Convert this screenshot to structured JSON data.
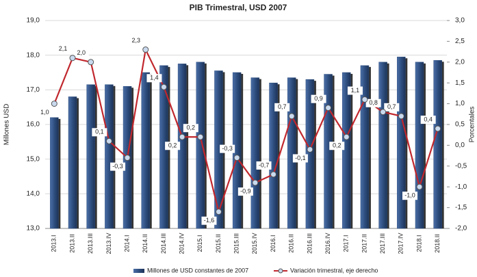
{
  "chart_data": {
    "type": "bar_line",
    "title": "PIB Trimestral, USD 2007",
    "y_label": "Millones USD",
    "y2_label": "Porcentales",
    "categories": [
      "2013.I",
      "2013.II",
      "2013.III",
      "2013.IV",
      "2014.I",
      "2014.II",
      "2014.III",
      "2014.IV",
      "2015.I",
      "2015.II",
      "2015.III",
      "2015.IV",
      "2016.I",
      "2016.II",
      "2016.III",
      "2016.IV",
      "2017.I",
      "2017.II",
      "2017.III",
      "2017.IV",
      "2018.I",
      "2018.II"
    ],
    "series": [
      {
        "name": "Millones de USD constantes de 2007",
        "color": "#2f4f80",
        "type": "bar",
        "values": [
          16.2,
          16.8,
          17.15,
          17.15,
          17.1,
          17.5,
          17.7,
          17.75,
          17.8,
          17.55,
          17.5,
          17.35,
          17.2,
          17.35,
          17.3,
          17.45,
          17.5,
          17.7,
          17.8,
          17.95,
          17.8,
          17.85
        ]
      },
      {
        "name": "Variación trimestral, eje derecho",
        "color": "#c0272d",
        "type": "line",
        "axis": "y2",
        "values": [
          1.0,
          2.1,
          2.0,
          0.1,
          -0.3,
          2.3,
          1.4,
          0.2,
          0.2,
          -1.6,
          -0.3,
          -0.9,
          -0.7,
          0.7,
          -0.1,
          0.9,
          0.2,
          1.1,
          0.8,
          0.7,
          -1.0,
          0.4
        ],
        "value_labels": [
          "1,0",
          "2,1",
          "2,0",
          "0,1",
          "-0,3",
          "2,3",
          "1,4",
          "0,2",
          "0,2",
          "-1,6",
          "-0,3",
          "-0,9",
          "-0,7",
          "0,7",
          "-0,1",
          "0,9",
          "0,2",
          "1,1",
          "0,8",
          "0,7",
          "-1,0",
          "0,4"
        ]
      }
    ],
    "ylim": [
      13,
      19
    ],
    "yticks": [
      {
        "value": 13,
        "label": "13,0"
      },
      {
        "value": 14,
        "label": "14,0"
      },
      {
        "value": 15,
        "label": "15,0"
      },
      {
        "value": 16,
        "label": "16,0"
      },
      {
        "value": 17,
        "label": "17,0"
      },
      {
        "value": 18,
        "label": "18,0"
      },
      {
        "value": 19,
        "label": "19,0"
      }
    ],
    "y2lim": [
      -2,
      3
    ],
    "y2ticks": [
      {
        "value": -2,
        "label": "-2,0"
      },
      {
        "value": -1.5,
        "label": "-1,5"
      },
      {
        "value": -1,
        "label": "-1,0"
      },
      {
        "value": -0.5,
        "label": "-0,5"
      },
      {
        "value": 0,
        "label": "0,0"
      },
      {
        "value": 0.5,
        "label": "0,5"
      },
      {
        "value": 1,
        "label": "1,0"
      },
      {
        "value": 1.5,
        "label": "1,5"
      },
      {
        "value": 2,
        "label": "2,0"
      },
      {
        "value": 2.5,
        "label": "2,5"
      },
      {
        "value": 3,
        "label": "3,0"
      }
    ],
    "grid": true
  }
}
